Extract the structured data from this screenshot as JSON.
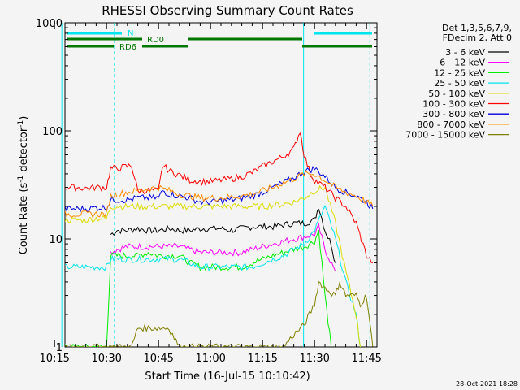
{
  "chart_data": {
    "type": "line",
    "title": "RHESSI Observing Summary Count Rates",
    "xlabel": "Start Time (16-Jul-15 10:10:42)",
    "ylabel": "Count Rate (s⁻¹ detector⁻¹)",
    "ylabel_parts": [
      "Count Rate (s",
      "-1",
      " detector",
      "-1",
      ")"
    ],
    "yscale": "log",
    "ylim": [
      1,
      1000
    ],
    "xlim_minutes": [
      10.3,
      11.8
    ],
    "x_tick_labels": [
      "10:15",
      "10:30",
      "10:45",
      "11:00",
      "11:15",
      "11:30",
      "11:45"
    ],
    "x_ticks": [
      10.25,
      10.5,
      10.75,
      11.0,
      11.25,
      11.5,
      11.75
    ],
    "y_tick_labels": [
      "1",
      "10",
      "100",
      "1000"
    ],
    "y_ticks": [
      1,
      10,
      100,
      1000
    ],
    "legend": {
      "header": [
        "Det 1,3,5,6,7,9,",
        "FDecim 2, Att 0"
      ],
      "placement": "right"
    },
    "annotations": {
      "N_label": "N",
      "RD0_label": "RD0",
      "RD6_label": "RD6",
      "N_color": "#00e5ee",
      "RD_color": "#007700",
      "vlines": [
        10.285,
        10.538,
        11.447,
        11.766
      ]
    },
    "timestamp": "28-Oct-2021 18:28",
    "series": [
      {
        "name": "3 - 6 keV",
        "color": "#000000",
        "x": [
          10.52,
          10.55,
          10.6,
          10.65,
          10.7,
          10.75,
          10.8,
          10.85,
          10.9,
          10.95,
          11.0,
          11.05,
          11.1,
          11.15,
          11.2,
          11.25,
          11.3,
          11.35,
          11.4,
          11.45,
          11.5,
          11.52,
          11.55,
          11.58,
          11.6
        ],
        "values": [
          11,
          12,
          12,
          12.5,
          12,
          12,
          12.5,
          12,
          12,
          12.5,
          12.5,
          12.5,
          12,
          12.5,
          13,
          13,
          13,
          13.5,
          14,
          14,
          15,
          20,
          12,
          9,
          6
        ]
      },
      {
        "name": "6 - 12 keV",
        "color": "#ff00ff",
        "x": [
          10.52,
          10.55,
          10.6,
          10.65,
          10.7,
          10.75,
          10.8,
          10.85,
          10.9,
          10.95,
          11.0,
          11.05,
          11.1,
          11.15,
          11.2,
          11.25,
          11.3,
          11.35,
          11.4,
          11.45,
          11.5,
          11.52,
          11.55,
          11.6
        ],
        "values": [
          7.5,
          8,
          8.5,
          8.5,
          8.5,
          8.5,
          8.5,
          8.5,
          8,
          7.5,
          7.5,
          7.5,
          7.5,
          7.5,
          8,
          8.5,
          9,
          9.5,
          10,
          10.5,
          11,
          13,
          8,
          5
        ]
      },
      {
        "name": "12 - 25 keV",
        "color": "#00ee00",
        "x": [
          10.3,
          10.48,
          10.5,
          10.52,
          10.55,
          10.6,
          10.65,
          10.7,
          10.75,
          10.8,
          10.85,
          10.9,
          10.95,
          11.0,
          11.05,
          11.1,
          11.15,
          11.2,
          11.25,
          11.3,
          11.35,
          11.4,
          11.45,
          11.5,
          11.52,
          11.55,
          11.58
        ],
        "values": [
          1,
          1,
          1,
          7,
          7,
          7,
          7,
          7.5,
          7,
          7,
          7,
          6,
          5.5,
          5.5,
          5.5,
          5.5,
          5.5,
          6,
          6.5,
          7,
          7.5,
          8,
          8.5,
          9.5,
          12,
          3,
          1
        ]
      },
      {
        "name": "25 - 50 keV",
        "color": "#00e5ee",
        "x": [
          10.3,
          10.35,
          10.4,
          10.45,
          10.5,
          10.52,
          10.55,
          10.6,
          10.65,
          10.7,
          10.75,
          10.8,
          10.85,
          10.9,
          10.95,
          11.0,
          11.05,
          11.1,
          11.15,
          11.2,
          11.25,
          11.3,
          11.35,
          11.4,
          11.45,
          11.5,
          11.55,
          11.6,
          11.65,
          11.7,
          11.72
        ],
        "values": [
          5.5,
          5.5,
          5.5,
          5.5,
          5.5,
          6.5,
          6.5,
          6.5,
          6.5,
          6.5,
          6.5,
          6.5,
          6.5,
          6,
          5.5,
          5.5,
          5.5,
          5.5,
          5.5,
          5.5,
          6,
          6.5,
          7,
          8,
          9,
          12,
          20,
          10,
          4,
          2,
          1
        ]
      },
      {
        "name": "50 - 100 keV",
        "color": "#dddd00",
        "x": [
          10.3,
          10.35,
          10.4,
          10.45,
          10.5,
          10.52,
          10.55,
          10.6,
          10.65,
          10.7,
          10.75,
          10.8,
          10.85,
          10.9,
          10.95,
          11.0,
          11.05,
          11.1,
          11.15,
          11.2,
          11.25,
          11.3,
          11.35,
          11.4,
          11.45,
          11.5,
          11.55,
          11.6,
          11.65,
          11.7,
          11.72
        ],
        "values": [
          15,
          15,
          15,
          15.5,
          15.5,
          20,
          20,
          20,
          20,
          20,
          20,
          20,
          20,
          20,
          20,
          20,
          20,
          20,
          20,
          20,
          20,
          20.5,
          21,
          22,
          24,
          28,
          30,
          14,
          5,
          2,
          1
        ]
      },
      {
        "name": "100 - 300 keV",
        "color": "#ff0000",
        "x": [
          10.3,
          10.35,
          10.4,
          10.45,
          10.5,
          10.52,
          10.55,
          10.6,
          10.62,
          10.65,
          10.7,
          10.75,
          10.77,
          10.8,
          10.85,
          10.9,
          10.95,
          11.0,
          11.05,
          11.1,
          11.15,
          11.2,
          11.25,
          11.3,
          11.35,
          11.4,
          11.43,
          11.45,
          11.48,
          11.5,
          11.55,
          11.6,
          11.65,
          11.7,
          11.75,
          11.78
        ],
        "values": [
          30,
          30,
          29.5,
          30,
          30,
          45,
          45,
          47,
          48,
          28,
          28,
          28,
          48,
          43,
          39,
          35,
          34,
          34,
          35,
          36,
          38,
          41,
          47,
          52,
          58,
          68,
          100,
          60,
          40,
          35,
          30,
          24,
          20,
          14,
          7,
          6
        ]
      },
      {
        "name": "300 - 800 keV",
        "color": "#0000dd",
        "x": [
          10.3,
          10.35,
          10.4,
          10.45,
          10.5,
          10.52,
          10.55,
          10.6,
          10.65,
          10.7,
          10.75,
          10.77,
          10.8,
          10.85,
          10.9,
          10.95,
          11.0,
          11.05,
          11.1,
          11.15,
          11.2,
          11.25,
          11.3,
          11.35,
          11.4,
          11.45,
          11.5,
          11.55,
          11.6,
          11.65,
          11.7,
          11.75,
          11.78
        ],
        "values": [
          19,
          19,
          19,
          19.5,
          19.5,
          23,
          23,
          23,
          24,
          24,
          24,
          28,
          26,
          25,
          24,
          22,
          22,
          22.5,
          23,
          24,
          25,
          27,
          30,
          33,
          37,
          42,
          45,
          38,
          30,
          27,
          25,
          22,
          19
        ]
      },
      {
        "name": "800 - 7000 keV",
        "color": "#ff8c00",
        "x": [
          10.3,
          10.35,
          10.4,
          10.45,
          10.5,
          10.52,
          10.55,
          10.6,
          10.65,
          10.7,
          10.75,
          10.8,
          10.85,
          10.9,
          10.95,
          11.0,
          11.05,
          11.1,
          11.15,
          11.2,
          11.25,
          11.3,
          11.35,
          11.4,
          11.45,
          11.5,
          11.55,
          11.6,
          11.65,
          11.7,
          11.75,
          11.78
        ],
        "values": [
          17,
          17,
          17,
          17,
          17,
          25,
          26,
          27,
          28,
          29,
          30,
          28,
          26,
          25,
          24,
          24,
          24,
          24.5,
          25,
          26,
          28,
          30,
          33,
          36,
          40,
          40,
          35,
          30,
          27,
          25,
          22,
          20
        ]
      },
      {
        "name": "7000 - 15000 keV",
        "color": "#808000",
        "x": [
          10.3,
          10.62,
          10.65,
          10.7,
          10.75,
          10.8,
          10.85,
          11.35,
          11.4,
          11.45,
          11.5,
          11.52,
          11.55,
          11.6,
          11.62,
          11.65,
          11.7,
          11.72,
          11.75,
          11.78
        ],
        "values": [
          1,
          1,
          1.5,
          1.5,
          1.5,
          1.5,
          1,
          1,
          1.3,
          1.6,
          2.5,
          4,
          3.5,
          3,
          4,
          3,
          3,
          2.5,
          3,
          1
        ]
      }
    ]
  }
}
